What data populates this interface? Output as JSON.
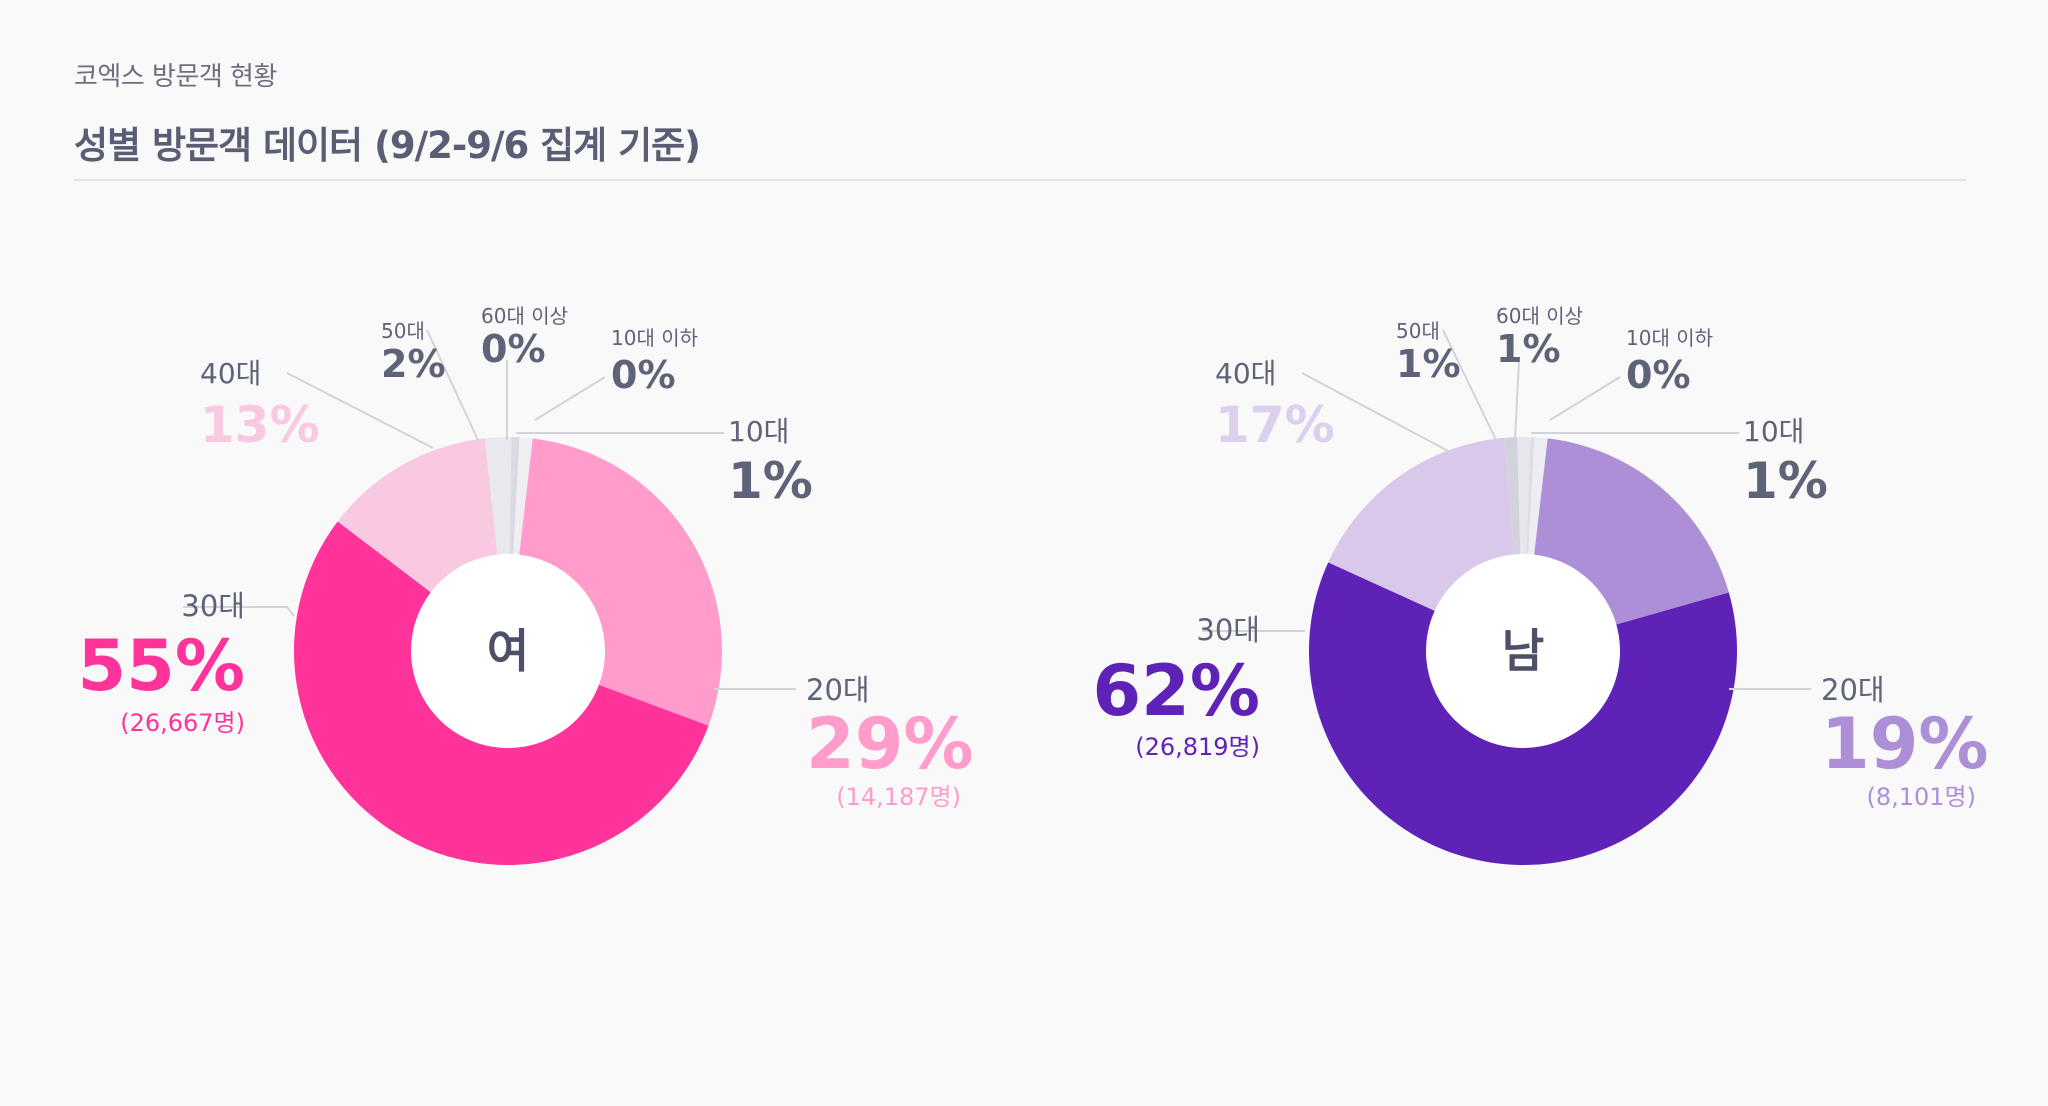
{
  "header": {
    "subtitle": "코엑스 방문객 현황",
    "title": "성별 방문객 데이터 (9/2-9/6 집계 기준)"
  },
  "chart_data": [
    {
      "type": "pie",
      "variant": "donut",
      "title": "여",
      "categories": [
        "10대 이하",
        "10대",
        "20대",
        "30대",
        "40대",
        "50대",
        "60대 이상"
      ],
      "values": [
        0.3,
        1,
        29,
        55,
        13,
        2,
        0.3
      ],
      "labels": [
        {
          "cat": "10대 이하",
          "pct": "0%",
          "count": ""
        },
        {
          "cat": "10대",
          "pct": "1%",
          "count": ""
        },
        {
          "cat": "20대",
          "pct": "29%",
          "count": "(14,187명)"
        },
        {
          "cat": "30대",
          "pct": "55%",
          "count": "(26,667명)"
        },
        {
          "cat": "40대",
          "pct": "13%",
          "count": ""
        },
        {
          "cat": "50대",
          "pct": "2%",
          "count": ""
        },
        {
          "cat": "60대 이상",
          "pct": "0%",
          "count": ""
        }
      ],
      "colors": [
        "#d8d8e0",
        "#eeeef3",
        "#ff9ccc",
        "#ff3399",
        "#f9c9e2",
        "#e8e8ee",
        "#d9dae2"
      ],
      "pct_colors": [
        "#5f6378",
        "#5f6378",
        "#ff9ccc",
        "#ff3399",
        "#f9c9e2",
        "#5f6378",
        "#5f6378"
      ]
    },
    {
      "type": "pie",
      "variant": "donut",
      "title": "남",
      "categories": [
        "10대 이하",
        "10대",
        "20대",
        "30대",
        "40대",
        "50대",
        "60대 이상"
      ],
      "values": [
        0.3,
        1,
        19,
        62,
        17,
        1,
        1
      ],
      "labels": [
        {
          "cat": "10대 이하",
          "pct": "0%",
          "count": ""
        },
        {
          "cat": "10대",
          "pct": "1%",
          "count": ""
        },
        {
          "cat": "20대",
          "pct": "19%",
          "count": "(8,101명)"
        },
        {
          "cat": "30대",
          "pct": "62%",
          "count": "(26,819명)"
        },
        {
          "cat": "40대",
          "pct": "17%",
          "count": ""
        },
        {
          "cat": "50대",
          "pct": "1%",
          "count": ""
        },
        {
          "cat": "60대 이상",
          "pct": "1%",
          "count": ""
        }
      ],
      "colors": [
        "#dcdce3",
        "#ececf2",
        "#ad8fd8",
        "#5e22b6",
        "#d9c8ea",
        "#d2d2dc",
        "#e6e6ec"
      ],
      "pct_colors": [
        "#5f6378",
        "#5f6378",
        "#ad8fd8",
        "#5e22b6",
        "#dcd0ee",
        "#5f6378",
        "#5f6378"
      ]
    }
  ]
}
